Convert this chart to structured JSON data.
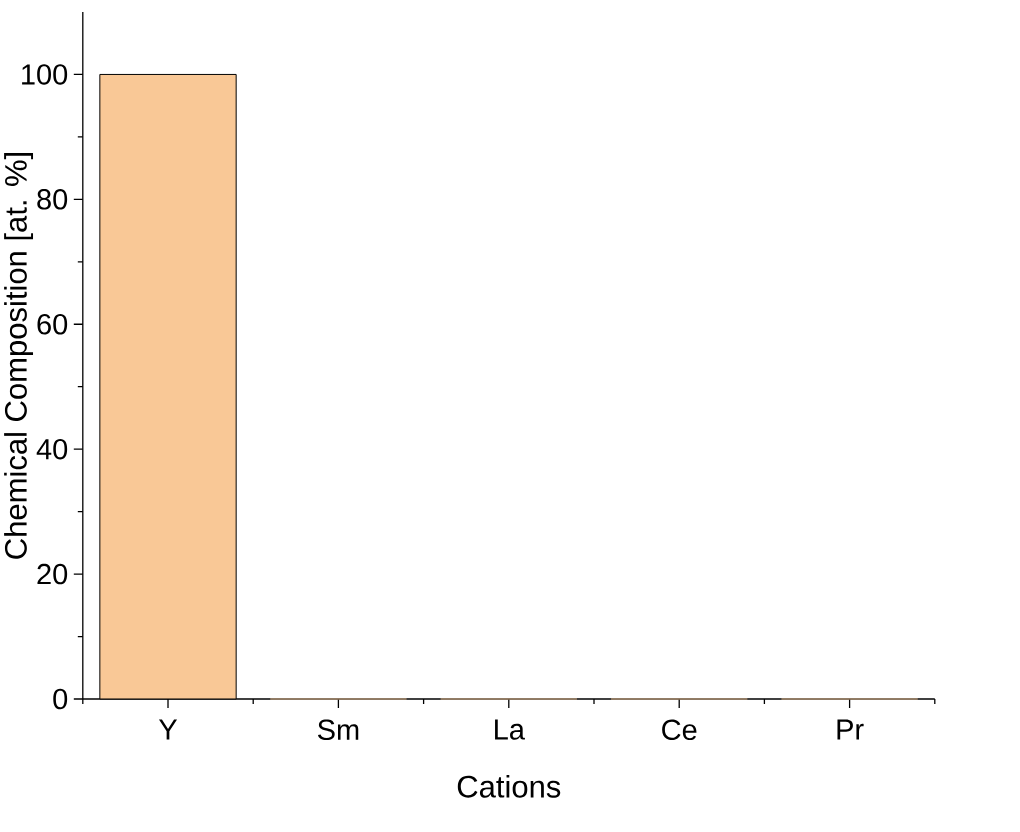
{
  "chart_data": {
    "type": "bar",
    "xlabel": "Cations",
    "ylabel": "Chemical Composition [at. %]",
    "categories": [
      "Y",
      "Sm",
      "La",
      "Ce",
      "Pr"
    ],
    "values": [
      100,
      0,
      0,
      0,
      0
    ],
    "color": "#f9c896",
    "ylim": [
      0,
      110
    ],
    "yticks": [
      0,
      20,
      40,
      60,
      80,
      100
    ],
    "grid": false
  }
}
